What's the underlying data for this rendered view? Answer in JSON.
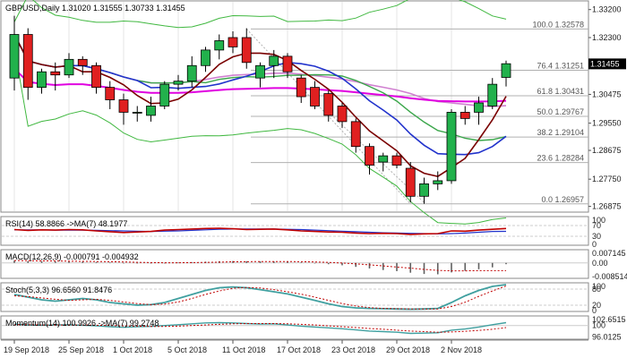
{
  "colors": {
    "up": "#22b14c",
    "down": "#e02020",
    "wick": "#000000",
    "grid": "#e6e6e6",
    "fib": "#b0b0b0",
    "price_box": "#000000",
    "ma_dark_red": "#7a0000",
    "ma_green": "#3aa64a",
    "ma_blue": "#2233cc",
    "ma_magenta": "#e000e0",
    "ma_violet": "#d080d0",
    "bollinger": "#40b840",
    "rsi": "#c00000",
    "rsi_ma": "#2233cc",
    "macd": "#606060",
    "macd_signal": "#c00000",
    "stoch_k": "#40a0a0",
    "stoch_d": "#c00000",
    "momentum": "#40a0a0",
    "momentum_ma": "#c00000"
  },
  "chart_data": [
    {
      "type": "candlestick",
      "title": "GBPUSD,Daily  1.31020 1.31555 1.30733 1.31455",
      "current_price_label": "1.31455",
      "ylim": [
        1.2672,
        1.3345
      ],
      "y_ticks": [
        "1.33200",
        "1.32300",
        "1.31455",
        "1.30475",
        "1.29550",
        "1.28675",
        "1.27750",
        "1.26875"
      ],
      "x_tick_labels": [
        "19 Sep 2018",
        "25 Sep 2018",
        "1 Oct 2018",
        "5 Oct 2018",
        "11 Oct 2018",
        "17 Oct 2018",
        "23 Oct 2018",
        "29 Oct 2018",
        "2 Nov 2018"
      ],
      "x_tick_index": [
        0,
        4,
        8,
        12,
        16,
        20,
        24,
        28,
        32
      ],
      "fibonacci": [
        {
          "label": "100.0 1.32578",
          "value": 1.32578
        },
        {
          "label": "76.4 1.31251",
          "value": 1.31251
        },
        {
          "label": "61.8 1.30431",
          "value": 1.30431
        },
        {
          "label": "50.0 1.29767",
          "value": 1.29767
        },
        {
          "label": "38.2 1.29104",
          "value": 1.29104
        },
        {
          "label": "23.6 1.28284",
          "value": 1.28284
        },
        {
          "label": "0.0 1.26957",
          "value": 1.26957
        }
      ],
      "candles": [
        {
          "o": 1.31,
          "h": 1.33,
          "l": 1.306,
          "c": 1.324
        },
        {
          "o": 1.324,
          "h": 1.326,
          "l": 1.303,
          "c": 1.307
        },
        {
          "o": 1.307,
          "h": 1.313,
          "l": 1.305,
          "c": 1.312
        },
        {
          "o": 1.312,
          "h": 1.315,
          "l": 1.306,
          "c": 1.311
        },
        {
          "o": 1.311,
          "h": 1.318,
          "l": 1.31,
          "c": 1.316
        },
        {
          "o": 1.316,
          "h": 1.317,
          "l": 1.311,
          "c": 1.314
        },
        {
          "o": 1.314,
          "h": 1.315,
          "l": 1.305,
          "c": 1.307
        },
        {
          "o": 1.307,
          "h": 1.309,
          "l": 1.3,
          "c": 1.303
        },
        {
          "o": 1.303,
          "h": 1.305,
          "l": 1.295,
          "c": 1.299
        },
        {
          "o": 1.299,
          "h": 1.301,
          "l": 1.296,
          "c": 1.299
        },
        {
          "o": 1.298,
          "h": 1.304,
          "l": 1.296,
          "c": 1.301
        },
        {
          "o": 1.301,
          "h": 1.309,
          "l": 1.3,
          "c": 1.308
        },
        {
          "o": 1.308,
          "h": 1.311,
          "l": 1.306,
          "c": 1.309
        },
        {
          "o": 1.309,
          "h": 1.317,
          "l": 1.307,
          "c": 1.314
        },
        {
          "o": 1.314,
          "h": 1.32,
          "l": 1.312,
          "c": 1.319
        },
        {
          "o": 1.319,
          "h": 1.324,
          "l": 1.316,
          "c": 1.322
        },
        {
          "o": 1.323,
          "h": 1.325,
          "l": 1.318,
          "c": 1.32
        },
        {
          "o": 1.323,
          "h": 1.326,
          "l": 1.313,
          "c": 1.315
        },
        {
          "o": 1.31,
          "h": 1.315,
          "l": 1.307,
          "c": 1.314
        },
        {
          "o": 1.314,
          "h": 1.319,
          "l": 1.31,
          "c": 1.317
        },
        {
          "o": 1.317,
          "h": 1.318,
          "l": 1.31,
          "c": 1.312
        },
        {
          "o": 1.31,
          "h": 1.311,
          "l": 1.302,
          "c": 1.304
        },
        {
          "o": 1.307,
          "h": 1.309,
          "l": 1.3,
          "c": 1.301
        },
        {
          "o": 1.305,
          "h": 1.306,
          "l": 1.296,
          "c": 1.298
        },
        {
          "o": 1.301,
          "h": 1.302,
          "l": 1.294,
          "c": 1.296
        },
        {
          "o": 1.296,
          "h": 1.297,
          "l": 1.286,
          "c": 1.288
        },
        {
          "o": 1.288,
          "h": 1.289,
          "l": 1.279,
          "c": 1.282
        },
        {
          "o": 1.283,
          "h": 1.286,
          "l": 1.28,
          "c": 1.285
        },
        {
          "o": 1.285,
          "h": 1.286,
          "l": 1.281,
          "c": 1.282
        },
        {
          "o": 1.281,
          "h": 1.283,
          "l": 1.27,
          "c": 1.272
        },
        {
          "o": 1.272,
          "h": 1.278,
          "l": 1.2696,
          "c": 1.276
        },
        {
          "o": 1.276,
          "h": 1.28,
          "l": 1.274,
          "c": 1.277
        },
        {
          "o": 1.277,
          "h": 1.3,
          "l": 1.276,
          "c": 1.299
        },
        {
          "o": 1.299,
          "h": 1.301,
          "l": 1.295,
          "c": 1.297
        },
        {
          "o": 1.299,
          "h": 1.304,
          "l": 1.295,
          "c": 1.302
        },
        {
          "o": 1.301,
          "h": 1.31,
          "l": 1.3,
          "c": 1.308
        },
        {
          "o": 1.3102,
          "h": 1.3156,
          "l": 1.3073,
          "c": 1.3146
        }
      ]
    },
    {
      "type": "line",
      "title": "RSI(14) 58.8866  ->MA(7) 48.1977",
      "ylim": [
        0,
        100
      ],
      "y_ticks": [
        "100",
        "70",
        "30",
        "0"
      ],
      "series": [
        {
          "values": [
            55,
            52,
            54,
            53,
            55,
            54,
            50,
            47,
            44,
            46,
            48,
            53,
            55,
            57,
            59,
            60,
            58,
            55,
            56,
            57,
            54,
            50,
            48,
            46,
            45,
            42,
            40,
            41,
            40,
            37,
            39,
            40,
            50,
            49,
            53,
            56,
            58.9
          ]
        },
        {
          "values": [
            54,
            54,
            54,
            53,
            53,
            53,
            52,
            51,
            50,
            49,
            48,
            49,
            50,
            52,
            54,
            56,
            57,
            57,
            57,
            57,
            56,
            55,
            53,
            51,
            49,
            47,
            45,
            43,
            42,
            41,
            40,
            39,
            40,
            42,
            45,
            48,
            48.2
          ]
        }
      ]
    },
    {
      "type": "bar",
      "title": "MACD(12,26,9) -0.000791 -0.004932",
      "y_ticks": [
        "0.007145",
        "0.00",
        "-0.008514"
      ],
      "ylim": [
        -0.0092,
        0.0078
      ],
      "series": [
        {
          "values": [
            0.0015,
            0.0012,
            0.001,
            0.0009,
            0.0009,
            0.0008,
            0.0006,
            0.0003,
            0.0,
            -0.0002,
            -0.0002,
            0.0,
            0.0002,
            0.0005,
            0.0008,
            0.0011,
            0.0012,
            0.0011,
            0.001,
            0.001,
            0.0007,
            0.0003,
            -0.0002,
            -0.0008,
            -0.0015,
            -0.0025,
            -0.0035,
            -0.0045,
            -0.0052,
            -0.0062,
            -0.007,
            -0.0072,
            -0.006,
            -0.005,
            -0.004,
            -0.0028,
            -0.0008
          ]
        },
        {
          "values": [
            0.0015,
            0.0014,
            0.0013,
            0.0012,
            0.0011,
            0.001,
            0.0009,
            0.0008,
            0.0006,
            0.0004,
            0.0002,
            0.0001,
            0.0001,
            0.0002,
            0.0003,
            0.0005,
            0.0007,
            0.0008,
            0.0009,
            0.0009,
            0.0009,
            0.0008,
            0.0006,
            0.0003,
            -0.0001,
            -0.0006,
            -0.0012,
            -0.0019,
            -0.0026,
            -0.0033,
            -0.0041,
            -0.0047,
            -0.005,
            -0.005,
            -0.0049,
            -0.0049,
            -0.0049
          ]
        }
      ]
    },
    {
      "type": "line",
      "title": "Stoch(5,3,3) 96.6560 91.8476",
      "ylim": [
        0,
        100
      ],
      "y_ticks": [
        "100",
        "80",
        "20",
        "0"
      ],
      "series": [
        {
          "values": [
            60,
            50,
            40,
            35,
            40,
            45,
            40,
            30,
            25,
            20,
            22,
            30,
            45,
            60,
            75,
            85,
            88,
            85,
            78,
            70,
            62,
            50,
            38,
            25,
            15,
            10,
            8,
            7,
            6,
            5,
            6,
            8,
            30,
            55,
            75,
            90,
            96.7
          ]
        },
        {
          "values": [
            55,
            52,
            47,
            42,
            38,
            40,
            42,
            38,
            32,
            26,
            22,
            24,
            32,
            45,
            60,
            73,
            83,
            86,
            84,
            78,
            70,
            61,
            50,
            38,
            26,
            17,
            11,
            8,
            7,
            6,
            6,
            6,
            15,
            31,
            53,
            73,
            91.8
          ]
        }
      ]
    },
    {
      "type": "line",
      "title": "Momentum(14) 100.9926  ->MA(7) 99.2748",
      "y_ticks": [
        "102.6515",
        "100",
        "96.0125"
      ],
      "ylim": [
        95.6,
        103.0
      ],
      "series": [
        {
          "values": [
            100.5,
            100.2,
            100.1,
            100.2,
            100.3,
            100.1,
            99.9,
            99.6,
            99.4,
            99.6,
            99.7,
            100.0,
            100.3,
            100.6,
            100.9,
            101.0,
            100.9,
            100.7,
            100.5,
            100.6,
            100.2,
            99.8,
            99.5,
            99.2,
            98.9,
            98.5,
            98.1,
            97.9,
            97.7,
            97.3,
            97.4,
            97.5,
            98.4,
            98.8,
            99.5,
            100.3,
            101.0
          ]
        },
        {
          "values": [
            100.3,
            100.3,
            100.2,
            100.2,
            100.2,
            100.2,
            100.1,
            100.0,
            99.9,
            99.8,
            99.7,
            99.7,
            99.8,
            100.0,
            100.2,
            100.4,
            100.6,
            100.7,
            100.7,
            100.7,
            100.6,
            100.4,
            100.2,
            99.9,
            99.6,
            99.3,
            99.0,
            98.7,
            98.4,
            98.1,
            97.9,
            97.7,
            97.8,
            98.0,
            98.3,
            98.7,
            99.3
          ]
        }
      ]
    }
  ]
}
